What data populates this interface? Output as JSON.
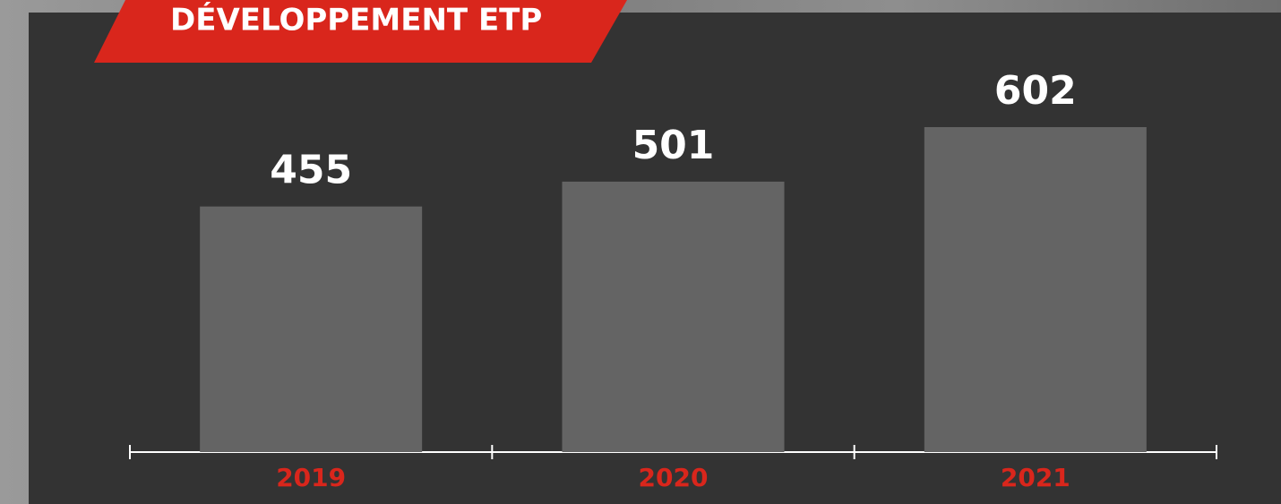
{
  "chart_data": {
    "type": "bar",
    "title": "DÉVELOPPEMENT ETP",
    "categories": [
      "2019",
      "2020",
      "2021"
    ],
    "values": [
      455,
      501,
      602
    ],
    "color": "#646464"
  }
}
